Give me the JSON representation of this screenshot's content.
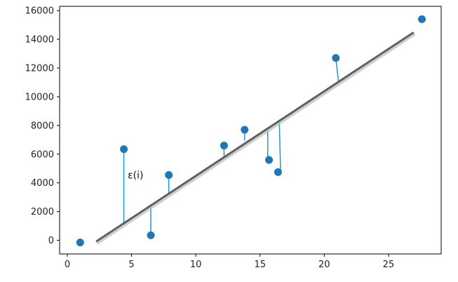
{
  "chart_data": {
    "type": "scatter",
    "title": "",
    "xlabel": "",
    "ylabel": "",
    "xlim": [
      -0.6,
      29.1
    ],
    "ylim": [
      -950,
      16300
    ],
    "x_ticks": [
      0,
      5,
      10,
      15,
      20,
      25
    ],
    "y_ticks": [
      0,
      2000,
      4000,
      6000,
      8000,
      10000,
      12000,
      14000,
      16000
    ],
    "grid": false,
    "legend": "none",
    "points": [
      {
        "x": 1.0,
        "y": -150
      },
      {
        "x": 4.4,
        "y": 6350
      },
      {
        "x": 6.5,
        "y": 350
      },
      {
        "x": 7.9,
        "y": 4550
      },
      {
        "x": 12.2,
        "y": 6600
      },
      {
        "x": 13.8,
        "y": 7700
      },
      {
        "x": 15.7,
        "y": 5600
      },
      {
        "x": 16.4,
        "y": 4750
      },
      {
        "x": 20.9,
        "y": 12700
      },
      {
        "x": 27.6,
        "y": 15400
      }
    ],
    "regression_line": {
      "x0": 2.3,
      "y0": -50,
      "x1": 26.9,
      "y1": 14450
    },
    "residuals": [
      {
        "from": [
          4.4,
          6350
        ],
        "to": [
          4.4,
          1100
        ]
      },
      {
        "from": [
          6.5,
          350
        ],
        "to": [
          6.5,
          2350
        ]
      },
      {
        "from": [
          7.9,
          4550
        ],
        "to": [
          7.9,
          3250
        ]
      },
      {
        "from": [
          12.2,
          6600
        ],
        "to": [
          12.2,
          5800
        ]
      },
      {
        "from": [
          13.8,
          7700
        ],
        "to": [
          13.8,
          6950
        ]
      },
      {
        "from": [
          15.6,
          7650
        ],
        "to": [
          15.6,
          5600
        ]
      },
      {
        "from": [
          16.5,
          8350
        ],
        "to": [
          16.6,
          4750
        ]
      },
      {
        "from": [
          20.9,
          12700
        ],
        "to": [
          21.1,
          11100
        ]
      }
    ],
    "annotation": {
      "text": "ε(i)",
      "x": 4.7,
      "y": 4300
    },
    "colors": {
      "points": "#1f77b4",
      "residuals": "#1c9ad6",
      "line": "#606060",
      "line_shadow": "#bdbdbd",
      "axes": "#000000",
      "text": "#222222"
    }
  }
}
